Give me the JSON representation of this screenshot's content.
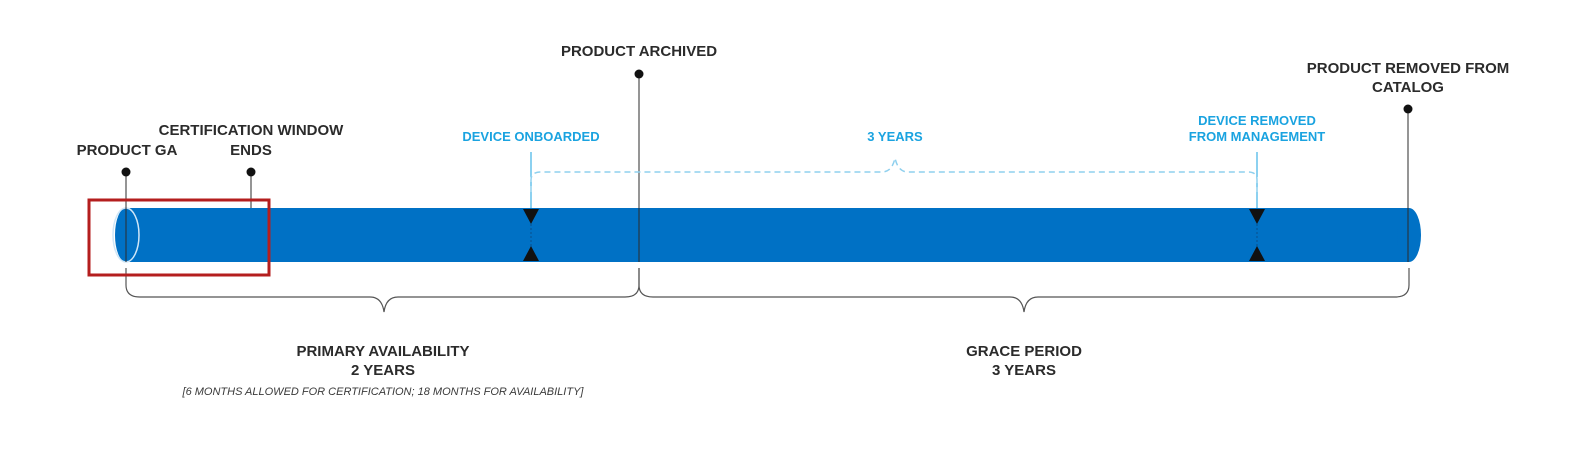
{
  "milestones": {
    "product_ga": "PRODUCT GA",
    "cert_window_line1": "CERTIFICATION WINDOW",
    "cert_window_line2": "ENDS",
    "product_archived": "PRODUCT ARCHIVED",
    "product_removed_line1": "PRODUCT REMOVED FROM",
    "product_removed_line2": "CATALOG"
  },
  "device": {
    "onboarded": "DEVICE ONBOARDED",
    "span_label": "3 YEARS",
    "removed_line1": "DEVICE REMOVED",
    "removed_line2": "FROM MANAGEMENT"
  },
  "periods": {
    "primary_line1": "PRIMARY AVAILABILITY",
    "primary_line2": "2 YEARS",
    "primary_note": "[6 MONTHS ALLOWED FOR CERTIFICATION; 18 MONTHS FOR AVAILABILITY]",
    "grace_line1": "GRACE PERIOD",
    "grace_line2": "3 YEARS"
  },
  "colors": {
    "bar": "#0071c5",
    "accent": "#1aa3e0",
    "text": "#2b2b2b",
    "highlight": "#b41e1e"
  }
}
